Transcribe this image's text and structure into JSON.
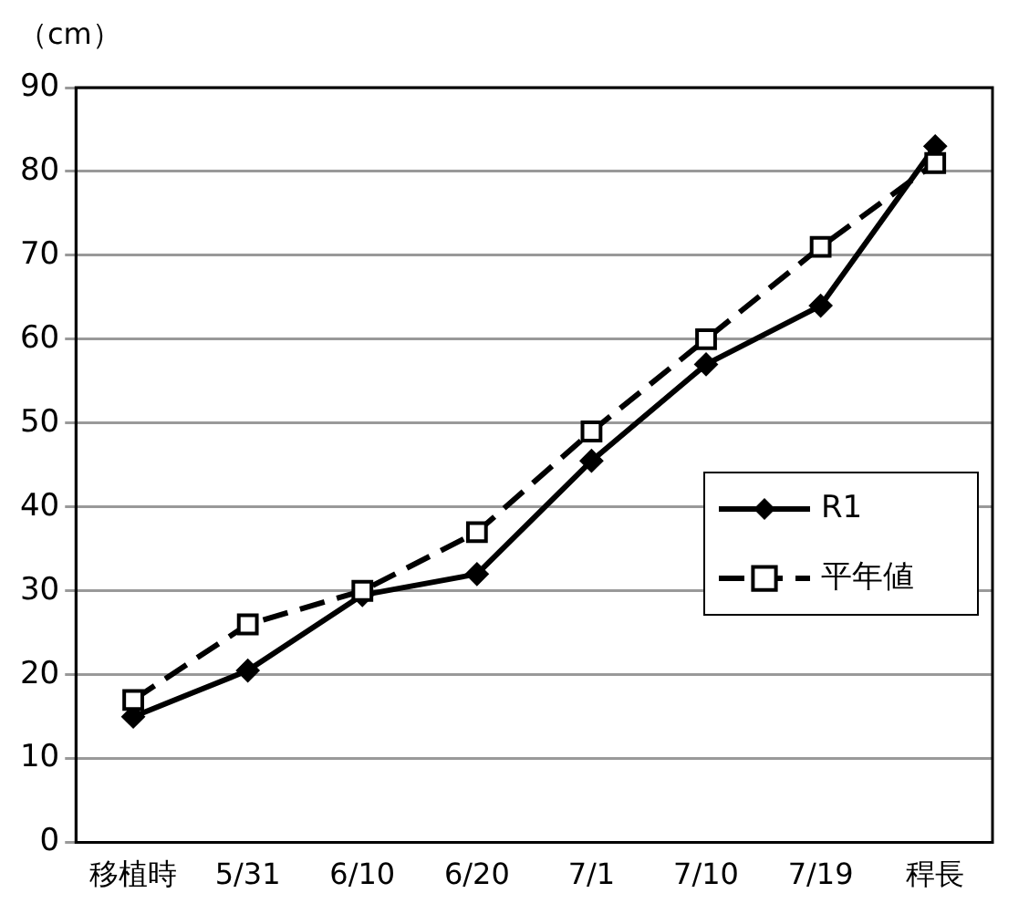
{
  "chart_data": {
    "type": "line",
    "ylabel": "（cm）",
    "categories": [
      "移植時",
      "5/31",
      "6/10",
      "6/20",
      "7/1",
      "7/10",
      "7/19",
      "稈長"
    ],
    "series": [
      {
        "name": "R1",
        "color": "#000000",
        "marker": "diamond",
        "line_style": "solid",
        "values": [
          15,
          20.5,
          29.5,
          32,
          45.5,
          57,
          64,
          83
        ]
      },
      {
        "name": "平年値",
        "color": "#000000",
        "marker": "square",
        "line_style": "dashed",
        "values": [
          17,
          26,
          30,
          37,
          49,
          60,
          71,
          81
        ]
      }
    ],
    "ylim": [
      0,
      90
    ],
    "yticks": [
      0,
      10,
      20,
      30,
      40,
      50,
      60,
      70,
      80,
      90
    ],
    "grid": "y",
    "legend": "right"
  }
}
